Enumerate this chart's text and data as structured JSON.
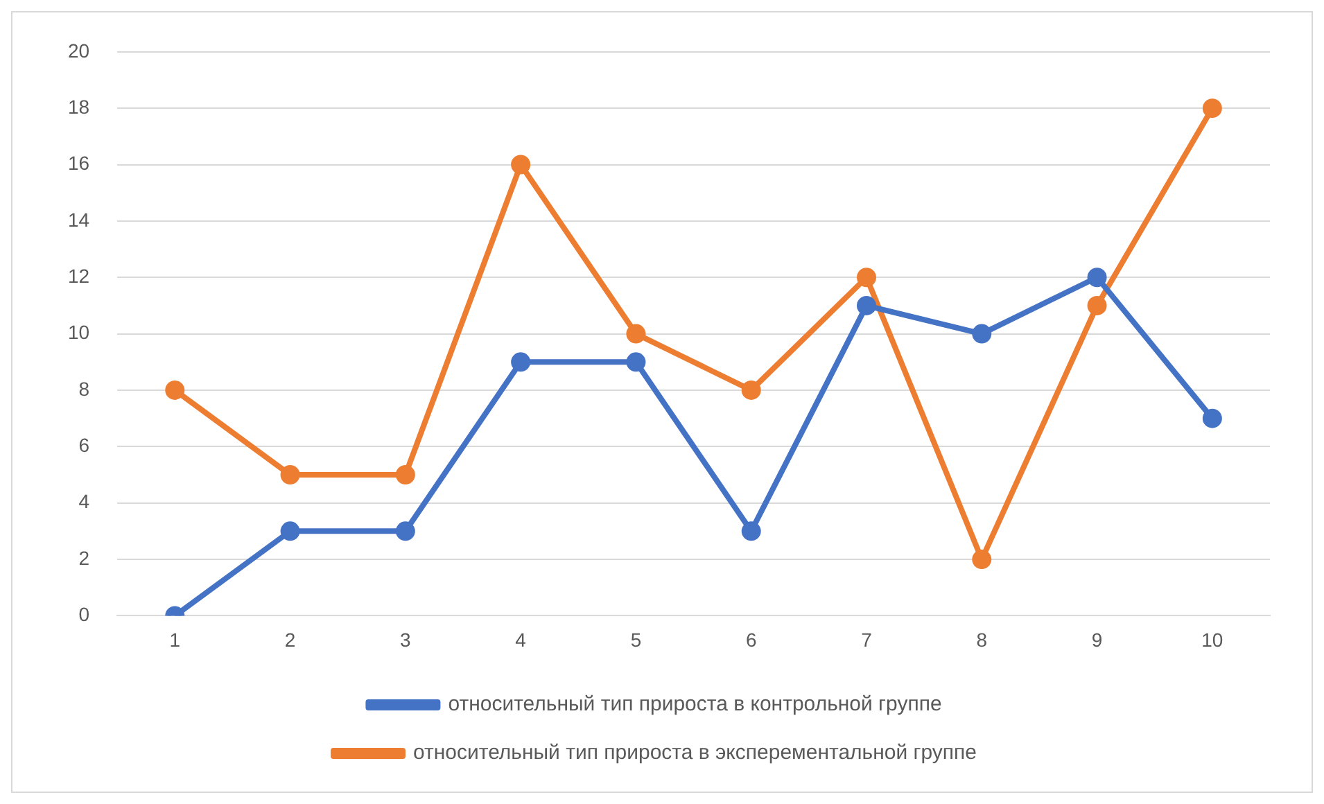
{
  "chart_data": {
    "type": "line",
    "categories": [
      "1",
      "2",
      "3",
      "4",
      "5",
      "6",
      "7",
      "8",
      "9",
      "10"
    ],
    "series": [
      {
        "name": "относительный тип прироста в контрольной группе",
        "color": "#4472c4",
        "values": [
          0,
          3,
          3,
          9,
          9,
          3,
          11,
          10,
          12,
          7
        ]
      },
      {
        "name": "относительный тип прироста в эксперементальной группе",
        "color": "#ed7d31",
        "values": [
          8,
          5,
          5,
          16,
          10,
          8,
          12,
          2,
          11,
          18
        ]
      }
    ],
    "ylim": [
      0,
      20
    ],
    "yticks": [
      0,
      2,
      4,
      6,
      8,
      10,
      12,
      14,
      16,
      18,
      20
    ],
    "grid": "y",
    "legend": "bottom",
    "marker": "circle",
    "line_style": "solid"
  }
}
